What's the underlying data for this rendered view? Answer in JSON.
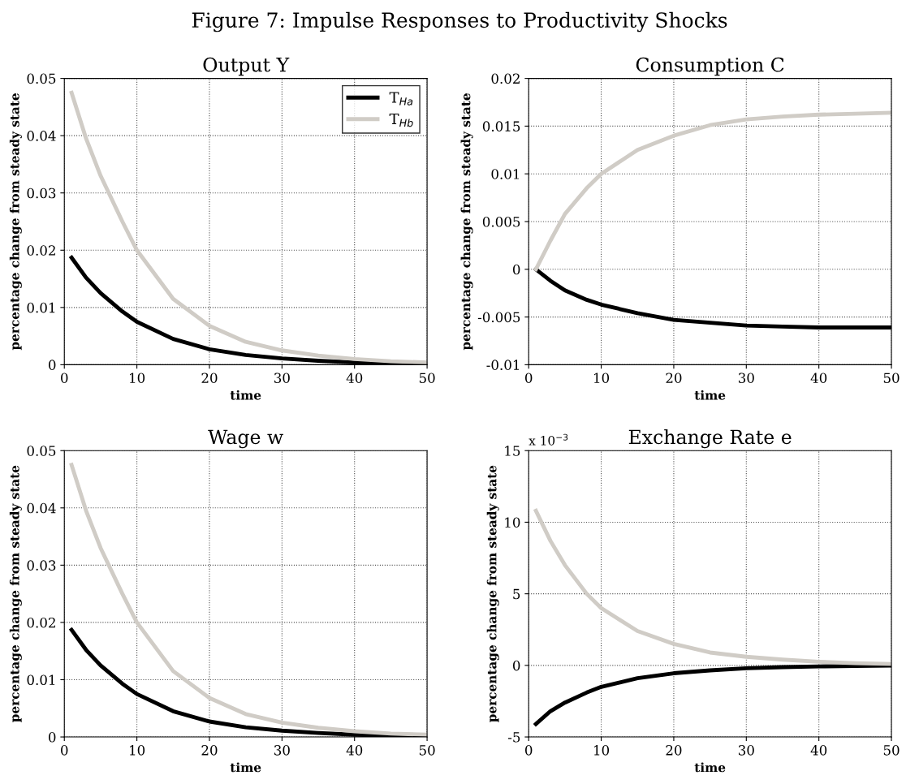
{
  "chart_data": [
    {
      "type": "line",
      "title": "Output Y",
      "xlabel": "time",
      "ylabel": "percentage change from steady state",
      "annotations": [
        "Figure 7: Impulse Responses to Productivity Shocks"
      ],
      "x": [
        1,
        3,
        5,
        8,
        10,
        15,
        20,
        25,
        30,
        35,
        40,
        45,
        50
      ],
      "series": [
        {
          "name": "T$_{Ha}$",
          "color": "#000000",
          "values": [
            0.0187,
            0.0152,
            0.0125,
            0.0093,
            0.0075,
            0.0045,
            0.0027,
            0.0017,
            0.0011,
            0.0007,
            0.0004,
            0.0002,
            0.0001
          ]
        },
        {
          "name": "T$_{Hb}$",
          "color": "#d0ccc6",
          "values": [
            0.0475,
            0.0395,
            0.033,
            0.025,
            0.02,
            0.0115,
            0.0068,
            0.004,
            0.0025,
            0.0016,
            0.001,
            0.0006,
            0.0004
          ]
        }
      ],
      "xlim": [
        0,
        50
      ],
      "xticks": [
        0,
        10,
        20,
        30,
        40,
        50
      ],
      "ylim": [
        0,
        0.05
      ],
      "yticks": [
        0,
        0.01,
        0.02,
        0.03,
        0.04,
        0.05
      ],
      "grid": true,
      "legend": "top right",
      "line_style": "solid"
    },
    {
      "type": "line",
      "title": "Consumption C",
      "xlabel": "time",
      "ylabel": "percentage change from steady state",
      "x": [
        1,
        3,
        5,
        8,
        10,
        15,
        20,
        25,
        30,
        35,
        40,
        45,
        50
      ],
      "series": [
        {
          "color": "#000000",
          "values": [
            0,
            -0.0012,
            -0.0022,
            -0.0032,
            -0.0037,
            -0.0046,
            -0.0053,
            -0.0056,
            -0.0059,
            -0.006,
            -0.0061,
            -0.0061,
            -0.0061
          ]
        },
        {
          "color": "#d0ccc6",
          "values": [
            0,
            0.003,
            0.0058,
            0.0085,
            0.01,
            0.0125,
            0.014,
            0.0151,
            0.0157,
            0.016,
            0.0162,
            0.0163,
            0.0164
          ]
        }
      ],
      "xlim": [
        0,
        50
      ],
      "xticks": [
        0,
        10,
        20,
        30,
        40,
        50
      ],
      "ylim": [
        -0.01,
        0.02
      ],
      "yticks": [
        -0.01,
        -0.005,
        0,
        0.005,
        0.01,
        0.015,
        0.02
      ],
      "grid": true,
      "line_style": "solid"
    },
    {
      "type": "line",
      "title": "Wage w",
      "xlabel": "time",
      "ylabel": "percentage change from steady state",
      "x": [
        1,
        3,
        5,
        8,
        10,
        15,
        20,
        25,
        30,
        35,
        40,
        45,
        50
      ],
      "series": [
        {
          "color": "#000000",
          "values": [
            0.0187,
            0.0152,
            0.0125,
            0.0093,
            0.0075,
            0.0045,
            0.0027,
            0.0017,
            0.0011,
            0.0007,
            0.0004,
            0.0002,
            0.0001
          ]
        },
        {
          "color": "#d0ccc6",
          "values": [
            0.0475,
            0.0395,
            0.033,
            0.025,
            0.02,
            0.0115,
            0.0068,
            0.004,
            0.0025,
            0.0016,
            0.001,
            0.0006,
            0.0004
          ]
        }
      ],
      "xlim": [
        0,
        50
      ],
      "xticks": [
        0,
        10,
        20,
        30,
        40,
        50
      ],
      "ylim": [
        0,
        0.05
      ],
      "yticks": [
        0,
        0.01,
        0.02,
        0.03,
        0.04,
        0.05
      ],
      "grid": true,
      "line_style": "solid"
    },
    {
      "type": "line",
      "title": "Exchange Rate e",
      "xlabel": "time",
      "ylabel": "percentage change from steady state",
      "annotations": [
        "x 10$^{−3}$"
      ],
      "x": [
        1,
        3,
        5,
        8,
        10,
        15,
        20,
        25,
        30,
        35,
        40,
        45,
        50
      ],
      "series": [
        {
          "color": "#000000",
          "values": [
            -4.1,
            -3.2,
            -2.6,
            -1.9,
            -1.5,
            -0.9,
            -0.55,
            -0.35,
            -0.2,
            -0.12,
            -0.07,
            -0.04,
            -0.02
          ]
        },
        {
          "color": "#d0ccc6",
          "values": [
            10.8,
            8.7,
            7.0,
            5.0,
            4.0,
            2.4,
            1.5,
            0.9,
            0.6,
            0.4,
            0.25,
            0.15,
            0.1
          ]
        }
      ],
      "xlim": [
        0,
        50
      ],
      "xticks": [
        0,
        10,
        20,
        30,
        40,
        50
      ],
      "ylim": [
        -5,
        15
      ],
      "yticks": [
        -5,
        0,
        5,
        10,
        15
      ],
      "grid": true,
      "line_style": "solid"
    }
  ]
}
